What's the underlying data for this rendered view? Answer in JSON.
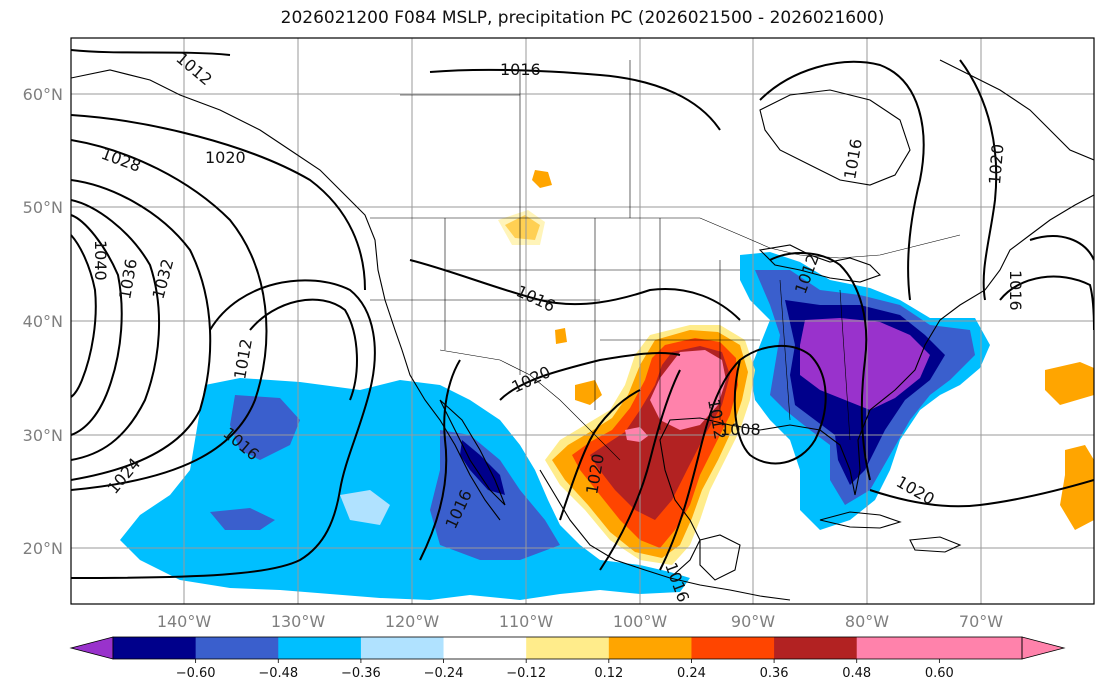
{
  "title": "2026021200 F084 MSLP, precipitation PC (2026021500 - 2026021600)",
  "map": {
    "lat_labels": [
      "60°N",
      "50°N",
      "40°N",
      "30°N",
      "20°N"
    ],
    "lon_labels": [
      "140°W",
      "130°W",
      "120°W",
      "110°W",
      "100°W",
      "90°W",
      "80°W",
      "70°W"
    ],
    "lat_values": [
      60,
      50,
      40,
      30,
      20
    ],
    "lon_values": [
      -140,
      -130,
      -120,
      -110,
      -100,
      -90,
      -80,
      -70
    ],
    "lat_range": [
      15,
      65
    ],
    "lon_range": [
      -150,
      -61
    ],
    "isobar_labels": [
      "1012",
      "1016",
      "1028",
      "1020",
      "1040",
      "1036",
      "1032",
      "1012",
      "1016",
      "1024",
      "1016",
      "1016",
      "1020",
      "1020",
      "1016",
      "1012",
      "1008",
      "1012",
      "1020",
      "1020",
      "1016",
      "1016"
    ],
    "grid": true
  },
  "colorbar": {
    "ticks": [
      "−0.60",
      "−0.48",
      "−0.36",
      "−0.24",
      "−0.12",
      "0.12",
      "0.24",
      "0.36",
      "0.48",
      "0.60"
    ],
    "colors": [
      "#9932cc",
      "#00008b",
      "#3a5fcd",
      "#00bfff",
      "#b0e2ff",
      "#ffffff",
      "#ffec8b",
      "#ffa500",
      "#ff4500",
      "#b22222",
      "#ff82ab",
      "#ff82ab"
    ],
    "extend": "both"
  }
}
